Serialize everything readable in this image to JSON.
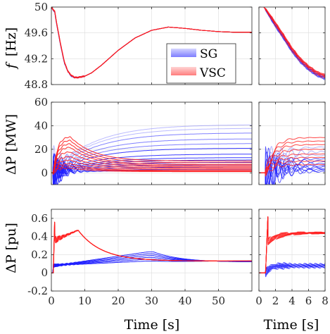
{
  "colors": {
    "sg": "#1a1aff",
    "vsc": "#ff1a1a",
    "axis": "#262626",
    "grid": "#dcdcdc"
  },
  "chart_data": [
    {
      "id": "freq_main",
      "type": "line",
      "ylabel": "f [Hz]",
      "xlabel": "",
      "xlim": [
        0,
        60
      ],
      "ylim": [
        48.8,
        50
      ],
      "xticks": [
        0,
        10,
        20,
        30,
        40,
        50
      ],
      "yticks": [
        48.8,
        49.2,
        49.6,
        50
      ],
      "ytick_labels": [
        "48.8",
        "49.2",
        "49.6",
        "50"
      ],
      "grid": true,
      "legend": {
        "placement": "center-right",
        "entries": [
          "SG",
          "VSC"
        ]
      },
      "series": [
        {
          "name": "SG",
          "color": "#1a1aff",
          "x": [
            0,
            1,
            2,
            3,
            4,
            5,
            6,
            7,
            8,
            10,
            12,
            15,
            20,
            25,
            30,
            35,
            40,
            45,
            50,
            55,
            60
          ],
          "values": [
            50,
            49.92,
            49.62,
            49.35,
            49.12,
            49.0,
            48.93,
            48.91,
            48.91,
            48.93,
            48.98,
            49.1,
            49.33,
            49.52,
            49.64,
            49.69,
            49.67,
            49.64,
            49.62,
            49.61,
            49.61
          ]
        },
        {
          "name": "VSC",
          "color": "#ff1a1a",
          "x": [
            0,
            1,
            2,
            3,
            4,
            5,
            6,
            7,
            8,
            10,
            12,
            15,
            20,
            25,
            30,
            35,
            40,
            45,
            50,
            55,
            60
          ],
          "values": [
            50,
            49.93,
            49.63,
            49.36,
            49.13,
            49.0,
            48.94,
            48.91,
            48.91,
            48.93,
            48.98,
            49.1,
            49.33,
            49.52,
            49.64,
            49.69,
            49.67,
            49.64,
            49.62,
            49.61,
            49.61
          ]
        }
      ]
    },
    {
      "id": "freq_zoom",
      "type": "line",
      "xlim": [
        0,
        8
      ],
      "ylim": [
        48.8,
        50
      ],
      "grid": true,
      "series": [
        {
          "name": "SG",
          "color": "#1a1aff",
          "x": [
            0,
            0.6,
            1,
            2,
            3,
            4,
            5,
            6,
            7,
            8
          ],
          "values": [
            50,
            50,
            49.92,
            49.72,
            49.53,
            49.33,
            49.17,
            49.05,
            48.96,
            48.91
          ]
        },
        {
          "name": "VSC",
          "color": "#ff1a1a",
          "x": [
            0,
            0.6,
            1,
            2,
            3,
            4,
            5,
            6,
            7,
            8
          ],
          "values": [
            50,
            50,
            49.93,
            49.73,
            49.54,
            49.34,
            49.18,
            49.06,
            48.97,
            48.92
          ]
        }
      ]
    },
    {
      "id": "dp_mw_main",
      "type": "line",
      "ylabel": "ΔP [MW]",
      "xlim": [
        0,
        60
      ],
      "ylim": [
        -10,
        60
      ],
      "yticks": [
        0,
        20,
        40,
        60
      ],
      "ytick_labels": [
        "0",
        "20",
        "40",
        "60"
      ],
      "grid": true,
      "series": [
        {
          "name": "SG",
          "color": "#1a1aff",
          "kind": "sg",
          "finals": [
            41,
            38,
            34,
            29,
            25,
            21,
            16,
            13,
            11,
            9,
            7,
            5,
            3,
            2
          ]
        },
        {
          "name": "VSC",
          "color": "#ff1a1a",
          "kind": "vsc",
          "peaks": [
            31,
            28,
            25,
            22,
            18,
            14,
            11,
            8,
            6,
            4
          ],
          "finals": [
            10,
            8.5,
            7,
            6,
            5,
            4,
            3,
            2,
            1.5,
            1
          ]
        }
      ]
    },
    {
      "id": "dp_mw_zoom",
      "type": "line",
      "xlim": [
        0,
        8
      ],
      "ylim": [
        -10,
        60
      ],
      "grid": true,
      "series": [
        {
          "name": "SG",
          "color": "#1a1aff",
          "kind": "sg_zoom",
          "levels": [
            22,
            18,
            15,
            12,
            10,
            8,
            6,
            5,
            4,
            3,
            2,
            1
          ]
        },
        {
          "name": "VSC",
          "color": "#ff1a1a",
          "kind": "vsc_zoom",
          "levels": [
            30,
            27,
            24,
            20,
            16,
            13,
            10,
            7
          ]
        }
      ]
    },
    {
      "id": "dp_pu_main",
      "type": "line",
      "ylabel": "ΔP [pu]",
      "xlabel": "Time [s]",
      "xlim": [
        0,
        60
      ],
      "ylim": [
        -0.2,
        0.7
      ],
      "xticks": [
        0,
        10,
        20,
        30,
        40,
        50
      ],
      "xtick_labels": [
        "0",
        "10",
        "20",
        "30",
        "40",
        "50"
      ],
      "yticks": [
        -0.2,
        0,
        0.2,
        0.4,
        0.6
      ],
      "ytick_labels": [
        "-0.2",
        "0",
        "0.2",
        "0.4",
        "0.6"
      ],
      "grid": true,
      "series": [
        {
          "name": "SG",
          "color": "#1a1aff",
          "kind": "sgpu",
          "peaks": [
            0.23,
            0.21,
            0.19,
            0.17,
            0.15,
            0.13
          ]
        },
        {
          "name": "VSC",
          "color": "#ff1a1a",
          "kind": "vscpu",
          "peak": 0.47,
          "final": 0.13
        }
      ]
    },
    {
      "id": "dp_pu_zoom",
      "type": "line",
      "xlabel": "Time [s]",
      "xlim": [
        0,
        8
      ],
      "ylim": [
        -0.2,
        0.7
      ],
      "xticks": [
        0,
        2,
        4,
        6,
        8
      ],
      "xtick_labels": [
        "0",
        "2",
        "4",
        "6",
        "8"
      ],
      "grid": true,
      "series": [
        {
          "name": "SG",
          "color": "#1a1aff",
          "kind": "sgpu_zoom",
          "level": 0.08
        },
        {
          "name": "VSC",
          "color": "#ff1a1a",
          "kind": "vscpu_zoom",
          "level": 0.44
        }
      ]
    }
  ],
  "labels": {
    "ylabel_f_italic": "f",
    "ylabel_f_unit": "[Hz]",
    "ylabel_dp_mw": "ΔP [MW]",
    "ylabel_dp_pu": "ΔP [pu]",
    "xlabel_main": "Time [s]",
    "xlabel_zoom": "Time [s]",
    "legend_sg": "SG",
    "legend_vsc": "VSC"
  }
}
